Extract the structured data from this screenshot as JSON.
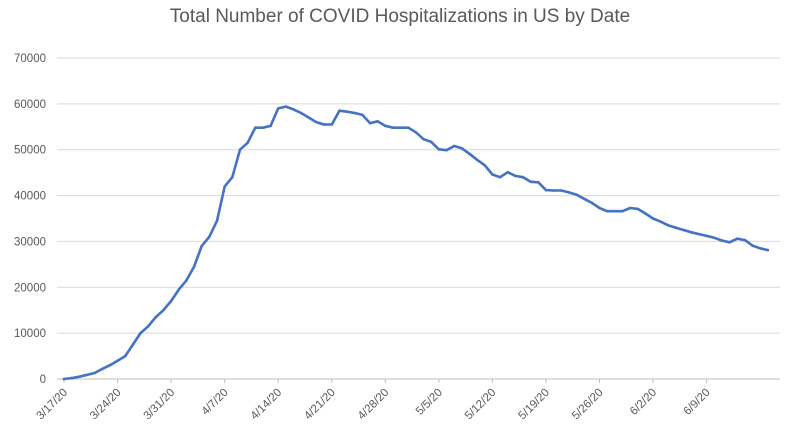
{
  "chart_data": {
    "type": "line",
    "title": "Total Number of COVID Hospitalizations in US by Date",
    "xlabel": "",
    "ylabel": "",
    "ylim": [
      0,
      70000
    ],
    "yticks": [
      "0",
      "10000",
      "20000",
      "30000",
      "40000",
      "50000",
      "60000",
      "70000"
    ],
    "yticks_values": [
      0,
      10000,
      20000,
      30000,
      40000,
      50000,
      60000,
      70000
    ],
    "xtick_labels": [
      "3/17/20",
      "3/24/20",
      "3/31/20",
      "4/7/20",
      "4/14/20",
      "4/21/20",
      "4/28/20",
      "5/5/20",
      "5/12/20",
      "5/19/20",
      "5/26/20",
      "6/2/20",
      "6/9/20"
    ],
    "grid": true,
    "legend": "none",
    "line_color": "#4472C4",
    "series": [
      {
        "values": [
          0,
          200,
          500,
          900,
          1300,
          2200,
          3000,
          4000,
          5000,
          7500,
          10000,
          11500,
          13500,
          15000,
          17000,
          19500,
          21500,
          24500,
          29000,
          31000,
          34500,
          42000,
          44000,
          50000,
          51500,
          54800,
          54800,
          55200,
          59000,
          59400,
          58800,
          58000,
          57000,
          56000,
          55500,
          55500,
          58500,
          58300,
          58000,
          57600,
          55800,
          56200,
          55200,
          54800,
          54800,
          54800,
          53800,
          52300,
          51700,
          50100,
          49900,
          50800,
          50300,
          49100,
          47800,
          46600,
          44600,
          44000,
          45100,
          44300,
          44000,
          43000,
          42900,
          41200,
          41100,
          41100,
          40700,
          40200,
          39300,
          38400,
          37300,
          36600,
          36600,
          36600,
          37300,
          37100,
          36100,
          35000,
          34300,
          33500,
          33000,
          32500,
          32000,
          31600,
          31200,
          30800,
          30200,
          29800,
          30600,
          30300,
          29100,
          28500,
          28100
        ]
      }
    ]
  }
}
